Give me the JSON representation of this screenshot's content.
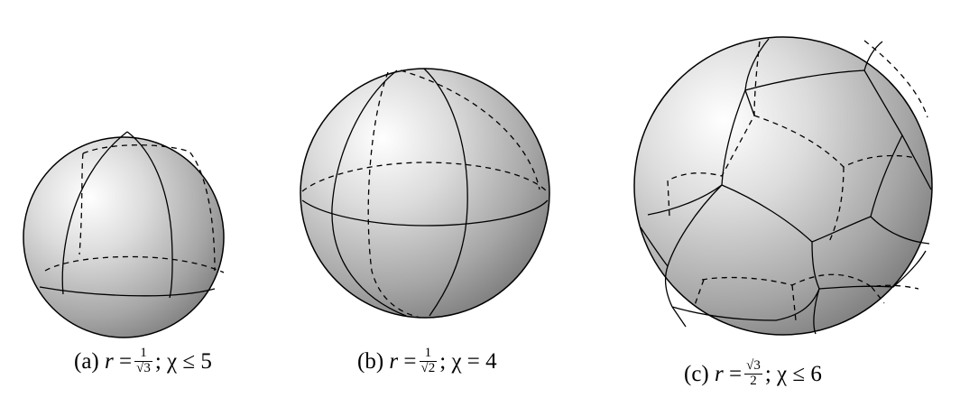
{
  "panels": [
    {
      "id": "a",
      "label": "(a)",
      "var": "r",
      "eq": "=",
      "frac_num": "1",
      "frac_den": "√3",
      "sep": ";",
      "chi": "χ",
      "relation": "≤",
      "value": "5"
    },
    {
      "id": "b",
      "label": "(b)",
      "var": "r",
      "eq": "=",
      "frac_num": "1",
      "frac_den": "√2",
      "sep": ";",
      "chi": "χ",
      "relation": "=",
      "value": "4"
    },
    {
      "id": "c",
      "label": "(c)",
      "var": "r",
      "eq": "=",
      "frac_num": "√3",
      "frac_den": "2",
      "sep": ";",
      "chi": "χ",
      "relation": "≤",
      "value": "6"
    }
  ]
}
